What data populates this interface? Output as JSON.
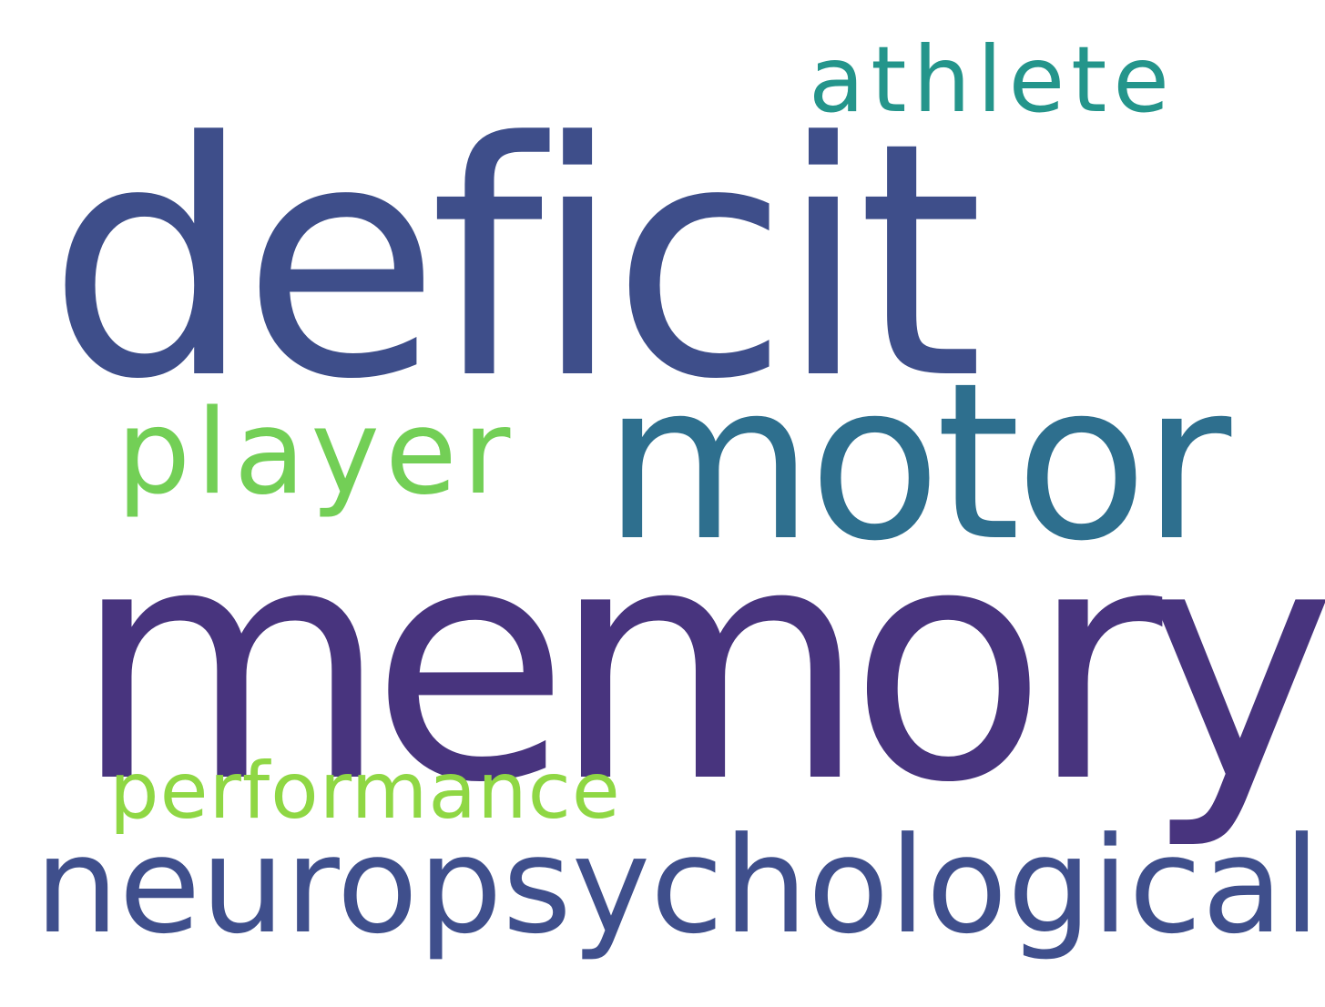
{
  "words": [
    {
      "text": "memory",
      "color": "#48347e"
    },
    {
      "text": "deficit",
      "color": "#3e4e8a"
    },
    {
      "text": "motor",
      "color": "#2e6f8e"
    },
    {
      "text": "neuropsychological",
      "color": "#3f4f8c"
    },
    {
      "text": "player",
      "color": "#73cf56"
    },
    {
      "text": "athlete",
      "color": "#24958b"
    },
    {
      "text": "performance",
      "color": "#8fd744"
    }
  ]
}
